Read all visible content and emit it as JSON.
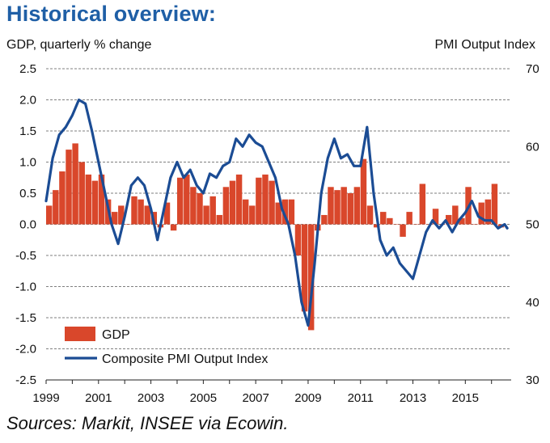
{
  "chart_data": {
    "type": "bar+line",
    "title": "Historical overview:",
    "left_axis_label": "GDP, quarterly % change",
    "right_axis_label": "PMI Output  Index",
    "source": "Sources: Markit, INSEE via Ecowin.",
    "left_ylim": [
      -2.5,
      2.5
    ],
    "left_ticks": [
      "2.5",
      "2.0",
      "1.5",
      "1.0",
      "0.5",
      "0.0",
      "-0.5",
      "-1.0",
      "-1.5",
      "-2.0",
      "-2.5"
    ],
    "right_ylim": [
      30,
      70
    ],
    "right_ticks": [
      "70",
      "60",
      "50",
      "40",
      "30"
    ],
    "x_range": [
      1999,
      2016.75
    ],
    "x_ticks": [
      "1999",
      "2001",
      "2003",
      "2005",
      "2007",
      "2009",
      "2011",
      "2013",
      "2015"
    ],
    "legend": [
      {
        "label": "GDP",
        "kind": "bar",
        "color": "#d9472b"
      },
      {
        "label": "Composite PMI Output Index",
        "kind": "line",
        "color": "#1b4c94"
      }
    ],
    "series": [
      {
        "name": "GDP",
        "kind": "bar",
        "x": [
          1999.0,
          1999.25,
          1999.5,
          1999.75,
          2000.0,
          2000.25,
          2000.5,
          2000.75,
          2001.0,
          2001.25,
          2001.5,
          2001.75,
          2002.0,
          2002.25,
          2002.5,
          2002.75,
          2003.0,
          2003.25,
          2003.5,
          2003.75,
          2004.0,
          2004.25,
          2004.5,
          2004.75,
          2005.0,
          2005.25,
          2005.5,
          2005.75,
          2006.0,
          2006.25,
          2006.5,
          2006.75,
          2007.0,
          2007.25,
          2007.5,
          2007.75,
          2008.0,
          2008.25,
          2008.5,
          2008.75,
          2009.0,
          2009.25,
          2009.5,
          2009.75,
          2010.0,
          2010.25,
          2010.5,
          2010.75,
          2011.0,
          2011.25,
          2011.5,
          2011.75,
          2012.0,
          2012.25,
          2012.5,
          2012.75,
          2013.0,
          2013.25,
          2013.5,
          2013.75,
          2014.0,
          2014.25,
          2014.5,
          2014.75,
          2015.0,
          2015.25,
          2015.5,
          2015.75,
          2016.0,
          2016.25
        ],
        "values": [
          0.3,
          0.55,
          0.85,
          1.2,
          1.3,
          1.0,
          0.8,
          0.7,
          0.8,
          0.4,
          0.2,
          0.3,
          0.0,
          0.45,
          0.4,
          0.3,
          0.2,
          -0.05,
          0.35,
          -0.1,
          0.75,
          0.8,
          0.6,
          0.5,
          0.3,
          0.45,
          0.15,
          0.6,
          0.7,
          0.8,
          0.4,
          0.3,
          0.75,
          0.8,
          0.7,
          0.35,
          0.4,
          0.4,
          -0.5,
          -1.4,
          -1.7,
          -0.1,
          0.15,
          0.6,
          0.55,
          0.6,
          0.5,
          0.6,
          1.05,
          0.3,
          -0.05,
          0.2,
          0.1,
          0.0,
          -0.2,
          0.2,
          0.0,
          0.65,
          0.0,
          0.25,
          0.0,
          0.15,
          0.3,
          0.1,
          0.6,
          0.0,
          0.35,
          0.4,
          0.65,
          -0.05
        ]
      },
      {
        "name": "Composite PMI Output Index",
        "kind": "line",
        "x": [
          1999.0,
          1999.25,
          1999.5,
          1999.75,
          2000.0,
          2000.25,
          2000.5,
          2000.75,
          2001.0,
          2001.25,
          2001.5,
          2001.75,
          2002.0,
          2002.25,
          2002.5,
          2002.75,
          2003.0,
          2003.25,
          2003.5,
          2003.75,
          2004.0,
          2004.25,
          2004.5,
          2004.75,
          2005.0,
          2005.25,
          2005.5,
          2005.75,
          2006.0,
          2006.25,
          2006.5,
          2006.75,
          2007.0,
          2007.25,
          2007.5,
          2007.75,
          2008.0,
          2008.25,
          2008.5,
          2008.75,
          2009.0,
          2009.25,
          2009.5,
          2009.75,
          2010.0,
          2010.25,
          2010.5,
          2010.75,
          2011.0,
          2011.25,
          2011.5,
          2011.75,
          2012.0,
          2012.25,
          2012.5,
          2012.75,
          2013.0,
          2013.25,
          2013.5,
          2013.75,
          2014.0,
          2014.25,
          2014.5,
          2014.75,
          2015.0,
          2015.25,
          2015.5,
          2015.75,
          2016.0,
          2016.25,
          2016.5,
          2016.6
        ],
        "values": [
          53.0,
          58.5,
          61.5,
          62.5,
          64.0,
          66.0,
          65.5,
          62.0,
          58.0,
          54.0,
          50.0,
          47.5,
          51.0,
          55.0,
          56.0,
          55.0,
          52.0,
          48.0,
          52.0,
          56.0,
          58.0,
          56.0,
          57.0,
          55.0,
          54.0,
          56.5,
          56.0,
          57.5,
          58.0,
          61.0,
          60.0,
          61.5,
          60.5,
          60.0,
          58.0,
          56.0,
          52.0,
          50.0,
          46.0,
          40.0,
          37.0,
          45.0,
          54.0,
          58.5,
          61.0,
          58.5,
          59.0,
          57.5,
          57.5,
          62.5,
          54.0,
          48.0,
          46.0,
          47.0,
          45.0,
          44.0,
          43.0,
          46.0,
          49.0,
          50.5,
          49.5,
          50.5,
          49.0,
          50.5,
          51.5,
          53.0,
          51.0,
          50.5,
          50.5,
          49.5,
          50.0,
          49.5
        ]
      }
    ]
  }
}
